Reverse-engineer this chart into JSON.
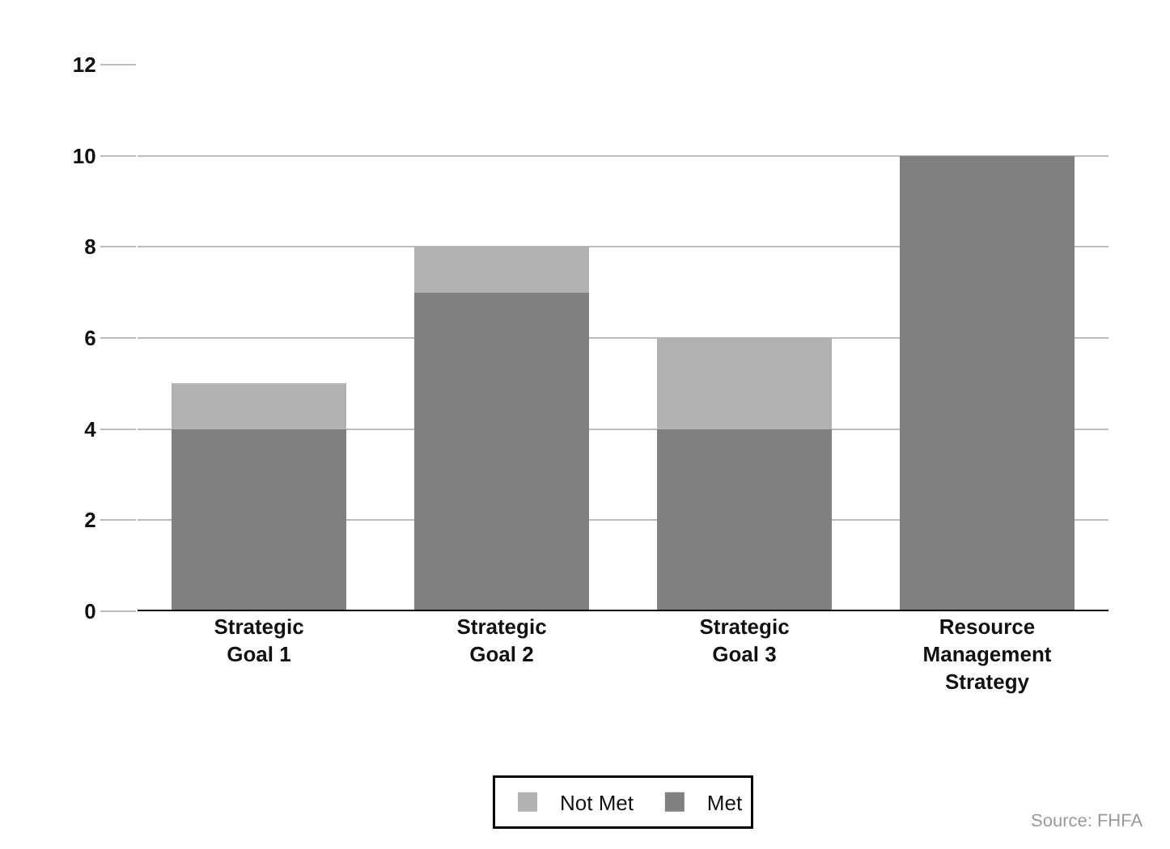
{
  "chart_data": {
    "type": "bar",
    "stacked": true,
    "categories": [
      "Strategic Goal 1",
      "Strategic Goal 2",
      "Strategic Goal 3",
      "Resource Management Strategy"
    ],
    "series": [
      {
        "name": "Met",
        "color": "#808080",
        "values": [
          4,
          7,
          4,
          10
        ]
      },
      {
        "name": "Not Met",
        "color": "#b2b2b2",
        "values": [
          1,
          1,
          2,
          0
        ]
      }
    ],
    "ylim": [
      0,
      12
    ],
    "yticks": [
      0,
      2,
      4,
      6,
      8,
      10,
      12
    ],
    "grid": "y",
    "legend": "bottom",
    "annotations": [
      "Source: FHFA"
    ]
  }
}
